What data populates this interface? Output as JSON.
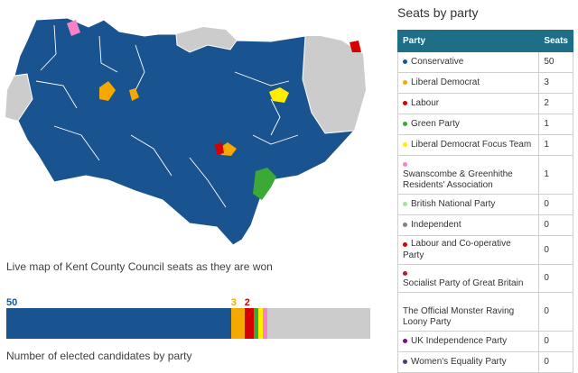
{
  "map": {
    "caption": "Live map of Kent County Council seats as they are won",
    "colors": {
      "sea_background": "#ffffff",
      "borders": "#ffffff"
    }
  },
  "bar": {
    "labels": [
      {
        "value": "50",
        "party": "Conservative",
        "color": "#1a5490"
      },
      {
        "value": "3",
        "party": "Liberal Democrat",
        "color": "#f5a800"
      },
      {
        "value": "2",
        "party": "Labour",
        "color": "#d50000"
      }
    ],
    "caption": "Number of elected candidates by party",
    "total_seats": 81,
    "undeclared_color": "#cccccc"
  },
  "panel": {
    "title": "Seats by party",
    "header": {
      "party": "Party",
      "seats": "Seats"
    },
    "rows": [
      {
        "party": "Conservative",
        "seats": "50",
        "color": "#1a5490"
      },
      {
        "party": "Liberal Democrat",
        "seats": "3",
        "color": "#f5a800"
      },
      {
        "party": "Labour",
        "seats": "2",
        "color": "#d50000"
      },
      {
        "party": "Green Party",
        "seats": "1",
        "color": "#3aa935"
      },
      {
        "party": "Liberal Democrat Focus Team",
        "seats": "1",
        "color": "#ffee00"
      },
      {
        "party": "Swanscombe & Greenhithe Residents' Association",
        "seats": "1",
        "color": "#f783c5"
      },
      {
        "party": "British National Party",
        "seats": "0",
        "color": "#a8e0a0"
      },
      {
        "party": "Independent",
        "seats": "0",
        "color": "#808080"
      },
      {
        "party": "Labour and Co-operative Party",
        "seats": "0",
        "color": "#d50000"
      },
      {
        "party": "Socialist Party of Great Britain",
        "seats": "0",
        "color": "#c0162a"
      },
      {
        "party": "The Official Monster Raving Loony Party",
        "seats": "0",
        "color": "#ffffff"
      },
      {
        "party": "UK Independence Party",
        "seats": "0",
        "color": "#70147a"
      },
      {
        "party": "Women's Equality Party",
        "seats": "0",
        "color": "#4a3a7a"
      }
    ]
  }
}
